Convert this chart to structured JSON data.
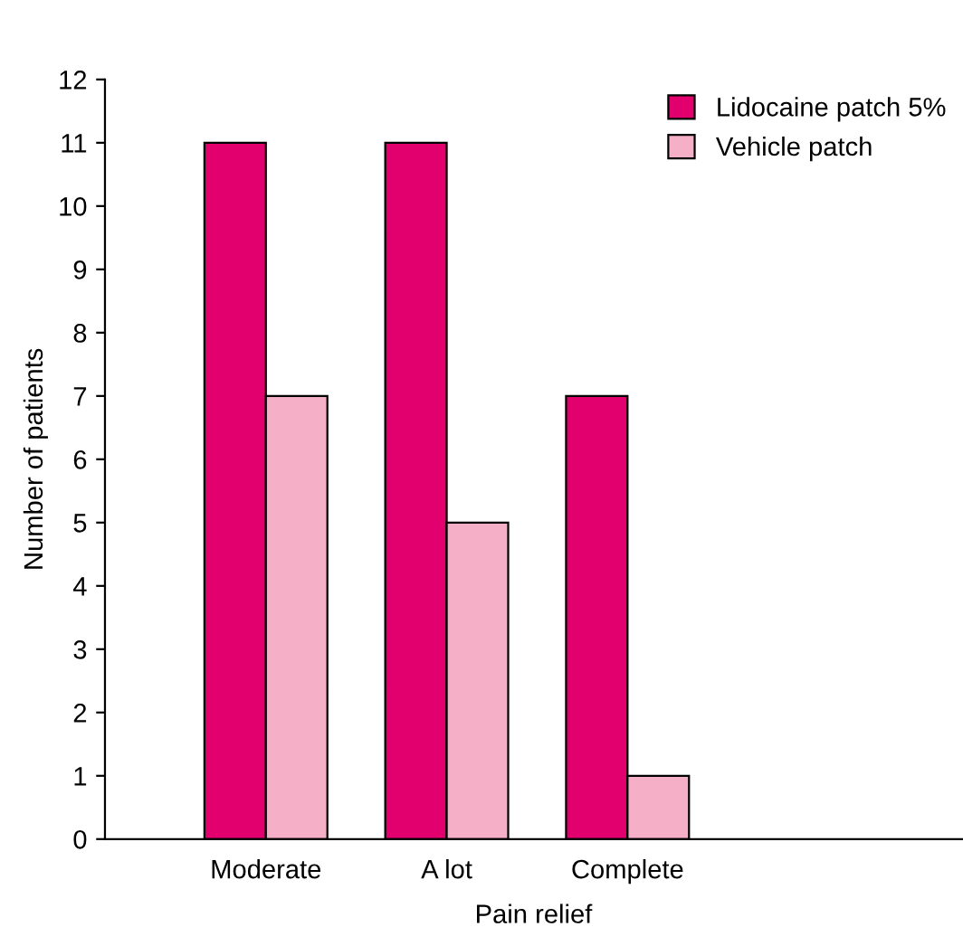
{
  "chart_data": {
    "type": "bar",
    "xlabel": "Pain relief",
    "ylabel": "Number of patients",
    "categories": [
      "Moderate",
      "A lot",
      "Complete"
    ],
    "series": [
      {
        "name": "Lidocaine patch 5%",
        "color": "#e2006f",
        "values": [
          11,
          11,
          7
        ]
      },
      {
        "name": "Vehicle patch",
        "color": "#f5b0c8",
        "values": [
          7,
          5,
          1
        ]
      }
    ],
    "ylim": [
      0,
      12
    ],
    "yticks": [
      0,
      1,
      2,
      3,
      4,
      5,
      6,
      7,
      8,
      9,
      10,
      11,
      12
    ],
    "grid": false,
    "legend": "top right"
  }
}
